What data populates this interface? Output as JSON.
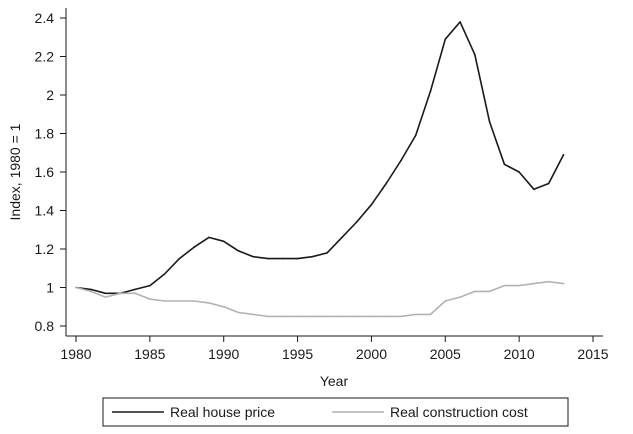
{
  "chart_data": {
    "type": "line",
    "xlabel": "Year",
    "ylabel": "Index, 1980 = 1",
    "xlim": [
      1980,
      2015
    ],
    "ylim": [
      0.8,
      2.4
    ],
    "xticks": [
      "1980",
      "1985",
      "1990",
      "1995",
      "2000",
      "2005",
      "2010",
      "2015"
    ],
    "yticks": [
      "0.8",
      "1",
      "1.2",
      "1.4",
      "1.6",
      "1.8",
      "2",
      "2.2",
      "2.4"
    ],
    "grid": false,
    "legend_position": "bottom",
    "x": [
      1980,
      1981,
      1982,
      1983,
      1984,
      1985,
      1986,
      1987,
      1988,
      1989,
      1990,
      1991,
      1992,
      1993,
      1994,
      1995,
      1996,
      1997,
      1998,
      1999,
      2000,
      2001,
      2002,
      2003,
      2004,
      2005,
      2006,
      2007,
      2008,
      2009,
      2010,
      2011,
      2012,
      2013
    ],
    "series": [
      {
        "name": "Real house price",
        "color": "#1a1a1a",
        "values": [
          1.0,
          0.99,
          0.97,
          0.97,
          0.99,
          1.01,
          1.07,
          1.15,
          1.21,
          1.26,
          1.24,
          1.19,
          1.16,
          1.15,
          1.15,
          1.15,
          1.16,
          1.18,
          1.26,
          1.34,
          1.43,
          1.54,
          1.66,
          1.79,
          2.02,
          2.29,
          2.38,
          2.21,
          1.86,
          1.64,
          1.6,
          1.51,
          1.54,
          1.69
        ]
      },
      {
        "name": "Real construction cost",
        "color": "#b3b3b3",
        "values": [
          1.0,
          0.98,
          0.95,
          0.97,
          0.97,
          0.94,
          0.93,
          0.93,
          0.93,
          0.92,
          0.9,
          0.87,
          0.86,
          0.85,
          0.85,
          0.85,
          0.85,
          0.85,
          0.85,
          0.85,
          0.85,
          0.85,
          0.85,
          0.86,
          0.86,
          0.93,
          0.95,
          0.98,
          0.98,
          1.01,
          1.01,
          1.02,
          1.03,
          1.02
        ]
      }
    ]
  }
}
